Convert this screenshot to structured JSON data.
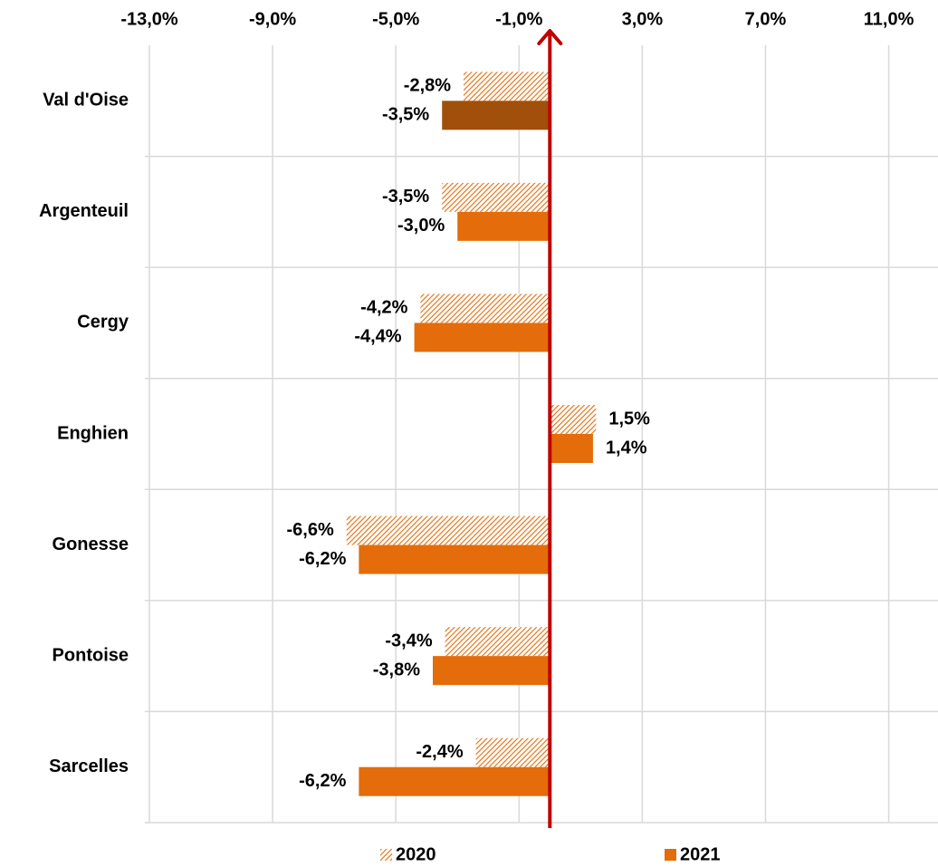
{
  "chart_data": {
    "type": "bar",
    "orientation": "horizontal",
    "categories": [
      "Val d'Oise",
      "Argenteuil",
      "Cergy",
      "Enghien",
      "Gonesse",
      "Pontoise",
      "Sarcelles"
    ],
    "series": [
      {
        "name": "2020",
        "color": "#e46c0a",
        "pattern": "hatch",
        "values": [
          -2.8,
          -3.5,
          -4.2,
          1.5,
          -6.6,
          -3.4,
          -2.4
        ],
        "value_labels": [
          "-2,8%",
          "-3,5%",
          "-4,2%",
          "1,5%",
          "-6,6%",
          "-3,4%",
          "-2,4%"
        ]
      },
      {
        "name": "2021",
        "color": "#e46c0a",
        "colors": [
          "#a0500a",
          "#e46c0a",
          "#e46c0a",
          "#e46c0a",
          "#e46c0a",
          "#e46c0a",
          "#e46c0a"
        ],
        "values": [
          -3.5,
          -3.0,
          -4.4,
          1.4,
          -6.2,
          -3.8,
          -6.2
        ],
        "value_labels": [
          "-3,5%",
          "-3,0%",
          "-4,4%",
          "1,4%",
          "-6,2%",
          "-3,8%",
          "-6,2%"
        ]
      }
    ],
    "xlim": [
      -13,
      12.6
    ],
    "xticks": [
      {
        "value": -13,
        "label": "-13,0%"
      },
      {
        "value": -9,
        "label": "-9,0%"
      },
      {
        "value": -5,
        "label": "-5,0%"
      },
      {
        "value": -1,
        "label": "-1,0%"
      },
      {
        "value": 3,
        "label": "3,0%"
      },
      {
        "value": 7,
        "label": "7,0%"
      },
      {
        "value": 11,
        "label": "11,0%"
      }
    ],
    "grid": true,
    "zero_line_color": "#c00000",
    "legend": "bottom"
  }
}
